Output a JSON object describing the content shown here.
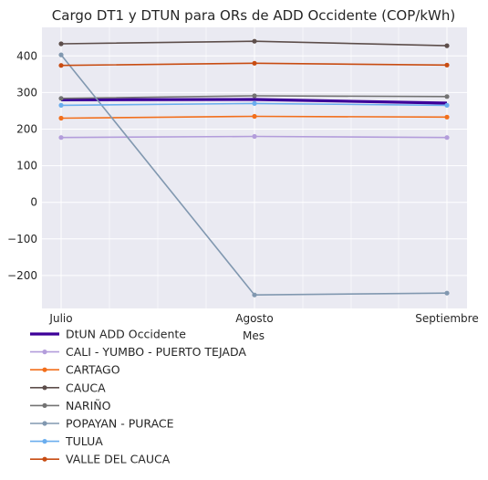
{
  "chart_data": {
    "type": "line",
    "title": "Cargo DT1 y DTUN para ORs de ADD Occidente (COP/kWh)",
    "xlabel": "Mes",
    "ylabel": "",
    "categories": [
      "Julio",
      "Agosto",
      "Septiembre"
    ],
    "ylim": [
      -290,
      478
    ],
    "yticks": [
      -200,
      -100,
      0,
      100,
      200,
      300,
      400
    ],
    "grid": true,
    "legend_position": "bottom-left",
    "series": [
      {
        "name": "DtUN ADD Occidente",
        "values": [
          280,
          281,
          271
        ],
        "color": "#3d0099",
        "emphasis": true
      },
      {
        "name": "CALI - YUMBO - PUERTO TEJADA",
        "values": [
          177,
          180,
          177
        ],
        "color": "#b39ddb"
      },
      {
        "name": "CARTAGO",
        "values": [
          230,
          235,
          233
        ],
        "color": "#f26f1c"
      },
      {
        "name": "CAUCA",
        "values": [
          433,
          440,
          428
        ],
        "color": "#5d4e4b"
      },
      {
        "name": "NARIÑO",
        "values": [
          284,
          291,
          289
        ],
        "color": "#737373"
      },
      {
        "name": "POPAYAN - PURACE",
        "values": [
          403,
          -253,
          -248
        ],
        "color": "#8198b0"
      },
      {
        "name": "TULUA",
        "values": [
          265,
          270,
          265
        ],
        "color": "#6aadee"
      },
      {
        "name": "VALLE DEL CAUCA",
        "values": [
          374,
          380,
          375
        ],
        "color": "#c84c12"
      }
    ]
  }
}
